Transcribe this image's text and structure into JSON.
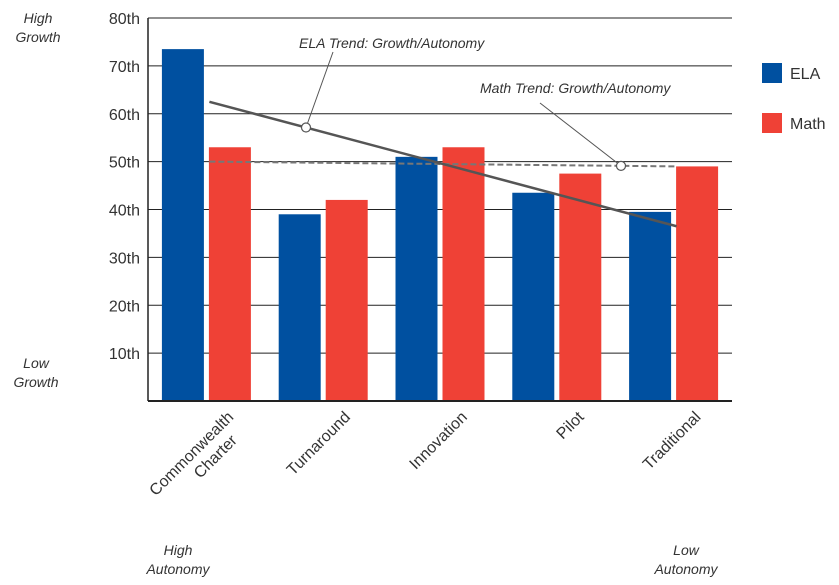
{
  "chart_data": {
    "type": "bar",
    "categories": [
      "Commonwealth Charter",
      "Turnaround",
      "Innovation",
      "Pilot",
      "Traditional"
    ],
    "category_lines": [
      [
        "Commonwealth",
        "Charter"
      ],
      [
        "Turnaround"
      ],
      [
        "Innovation"
      ],
      [
        "Pilot"
      ],
      [
        "Traditional"
      ]
    ],
    "series": [
      {
        "name": "ELA",
        "values": [
          73.5,
          39,
          51,
          43.5,
          39.5
        ],
        "color": "#0050a0"
      },
      {
        "name": "Math",
        "values": [
          53,
          42,
          53,
          47.5,
          49
        ],
        "color": "#ef4136"
      }
    ],
    "y_ticks": [
      {
        "value": 10,
        "label": "10th"
      },
      {
        "value": 20,
        "label": "20th"
      },
      {
        "value": 30,
        "label": "30th"
      },
      {
        "value": 40,
        "label": "40th"
      },
      {
        "value": 50,
        "label": "50th"
      },
      {
        "value": 60,
        "label": "60th"
      },
      {
        "value": 70,
        "label": "70th"
      },
      {
        "value": 80,
        "label": "80th"
      }
    ],
    "ylim": [
      0,
      80
    ],
    "grid": true,
    "legend_position": "right",
    "trend_lines": [
      {
        "label": "ELA Trend: Growth/Autonomy",
        "from": 62.5,
        "to": 36.5,
        "style": "solid",
        "color": "#555555"
      },
      {
        "label": "Math Trend: Growth/Autonomy",
        "from": 50,
        "to": 49,
        "style": "dashed",
        "color": "#777777"
      }
    ],
    "annotations": {
      "y_top": [
        "High",
        "Growth"
      ],
      "y_bottom": [
        "Low",
        "Growth"
      ],
      "x_left": [
        "High",
        "Autonomy"
      ],
      "x_right": [
        "Low",
        "Autonomy"
      ]
    }
  }
}
